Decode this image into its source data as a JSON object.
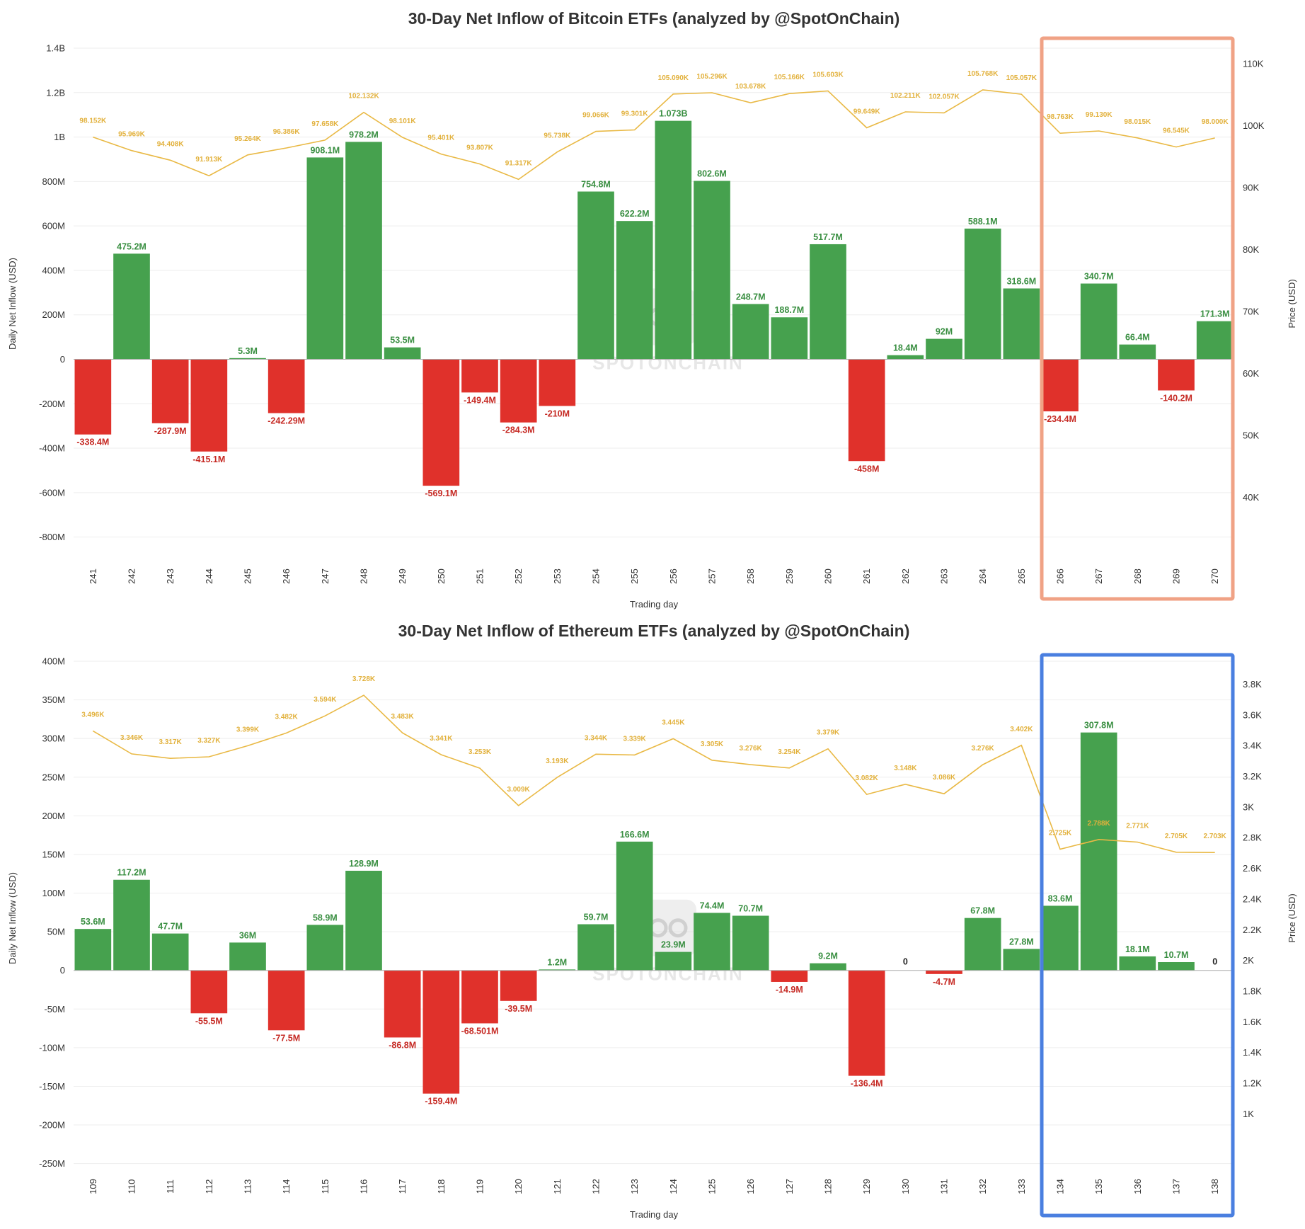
{
  "chart_data": [
    {
      "type": "bar",
      "title": "30-Day Net Inflow of Bitcoin ETFs (analyzed by @SpotOnChain)",
      "xlabel": "Trading day",
      "ylabel": "Daily Net Inflow (USD)",
      "y2label": "Price (USD)",
      "ylim": [
        -900000000,
        1400000000
      ],
      "y2lim": [
        30000,
        112500
      ],
      "yticks": [
        {
          "v": 1400000000,
          "label": "1.4B"
        },
        {
          "v": 1200000000,
          "label": "1.2B"
        },
        {
          "v": 1000000000,
          "label": "1B"
        },
        {
          "v": 800000000,
          "label": "800M"
        },
        {
          "v": 600000000,
          "label": "600M"
        },
        {
          "v": 400000000,
          "label": "400M"
        },
        {
          "v": 200000000,
          "label": "200M"
        },
        {
          "v": 0,
          "label": "0"
        },
        {
          "v": -200000000,
          "label": "-200M"
        },
        {
          "v": -400000000,
          "label": "-400M"
        },
        {
          "v": -600000000,
          "label": "-600M"
        },
        {
          "v": -800000000,
          "label": "-800M"
        }
      ],
      "y2ticks": [
        {
          "v": 110000,
          "label": "110K"
        },
        {
          "v": 100000,
          "label": "100K"
        },
        {
          "v": 90000,
          "label": "90K"
        },
        {
          "v": 80000,
          "label": "80K"
        },
        {
          "v": 70000,
          "label": "70K"
        },
        {
          "v": 60000,
          "label": "60K"
        },
        {
          "v": 50000,
          "label": "50K"
        },
        {
          "v": 40000,
          "label": "40K"
        }
      ],
      "categories": [
        "241",
        "242",
        "243",
        "244",
        "245",
        "246",
        "247",
        "248",
        "249",
        "250",
        "251",
        "252",
        "253",
        "254",
        "255",
        "256",
        "257",
        "258",
        "259",
        "260",
        "261",
        "262",
        "263",
        "264",
        "265",
        "266",
        "267",
        "268",
        "269",
        "270"
      ],
      "values": [
        -338400000,
        475200000,
        -287900000,
        -415100000,
        5300000,
        -242290000,
        908100000,
        978200000,
        53500000,
        -569100000,
        -149400000,
        -284300000,
        -210000000,
        754800000,
        622200000,
        1073000000,
        802600000,
        248700000,
        188700000,
        517700000,
        -458000000,
        18400000,
        92000000,
        588100000,
        318600000,
        -234400000,
        340700000,
        66400000,
        -140200000,
        171300000
      ],
      "value_labels": [
        "-338.4M",
        "475.2M",
        "-287.9M",
        "-415.1M",
        "5.3M",
        "-242.29M",
        "908.1M",
        "978.2M",
        "53.5M",
        "-569.1M",
        "-149.4M",
        "-284.3M",
        "-210M",
        "754.8M",
        "622.2M",
        "1.073B",
        "802.6M",
        "248.7M",
        "188.7M",
        "517.7M",
        "-458M",
        "18.4M",
        "92M",
        "588.1M",
        "318.6M",
        "-234.4M",
        "340.7M",
        "66.4M",
        "-140.2M",
        "171.3M"
      ],
      "price": [
        98152,
        95969,
        94408,
        91913,
        95264,
        96386,
        97658,
        102132,
        98101,
        95401,
        93807,
        91317,
        95738,
        99066,
        99301,
        105090,
        105296,
        103678,
        105166,
        105603,
        99649,
        102211,
        102057,
        105768,
        105057,
        98763,
        99130,
        98015,
        96545,
        98000
      ],
      "price_labels": [
        "98.152K",
        "95.969K",
        "94.408K",
        "91.913K",
        "95.264K",
        "96.386K",
        "97.658K",
        "102.132K",
        "98.101K",
        "95.401K",
        "93.807K",
        "91.317K",
        "95.738K",
        "99.066K",
        "99.301K",
        "105.090K",
        "105.296K",
        "103.678K",
        "105.166K",
        "105.603K",
        "99.649K",
        "102.211K",
        "102.057K",
        "105.768K",
        "105.057K",
        "98.763K",
        "99.130K",
        "98.015K",
        "96.545K",
        "98.000K"
      ],
      "colors": {
        "positive": "#46a14e",
        "negative": "#e0312b",
        "price": "#e9b945",
        "highlight": "#f0a285"
      },
      "highlight_from_index": 25,
      "watermark": "SPOTONCHAIN"
    },
    {
      "type": "bar",
      "title": "30-Day Net Inflow of Ethereum ETFs (analyzed by @SpotOnChain)",
      "xlabel": "Trading day",
      "ylabel": "Daily Net Inflow (USD)",
      "y2label": "Price (USD)",
      "ylim": [
        -265000000,
        400000000
      ],
      "y2lim": [
        600,
        3950
      ],
      "yticks": [
        {
          "v": 400000000,
          "label": "400M"
        },
        {
          "v": 350000000,
          "label": "350M"
        },
        {
          "v": 300000000,
          "label": "300M"
        },
        {
          "v": 250000000,
          "label": "250M"
        },
        {
          "v": 200000000,
          "label": "200M"
        },
        {
          "v": 150000000,
          "label": "150M"
        },
        {
          "v": 100000000,
          "label": "100M"
        },
        {
          "v": 50000000,
          "label": "50M"
        },
        {
          "v": 0,
          "label": "0"
        },
        {
          "v": -50000000,
          "label": "-50M"
        },
        {
          "v": -100000000,
          "label": "-100M"
        },
        {
          "v": -150000000,
          "label": "-150M"
        },
        {
          "v": -200000000,
          "label": "-200M"
        },
        {
          "v": -250000000,
          "label": "-250M"
        }
      ],
      "y2ticks": [
        {
          "v": 3800,
          "label": "3.8K"
        },
        {
          "v": 3600,
          "label": "3.6K"
        },
        {
          "v": 3400,
          "label": "3.4K"
        },
        {
          "v": 3200,
          "label": "3.2K"
        },
        {
          "v": 3000,
          "label": "3K"
        },
        {
          "v": 2800,
          "label": "2.8K"
        },
        {
          "v": 2600,
          "label": "2.6K"
        },
        {
          "v": 2400,
          "label": "2.4K"
        },
        {
          "v": 2200,
          "label": "2.2K"
        },
        {
          "v": 2000,
          "label": "2K"
        },
        {
          "v": 1800,
          "label": "1.8K"
        },
        {
          "v": 1600,
          "label": "1.6K"
        },
        {
          "v": 1400,
          "label": "1.4K"
        },
        {
          "v": 1200,
          "label": "1.2K"
        },
        {
          "v": 1000,
          "label": "1K"
        }
      ],
      "categories": [
        "109",
        "110",
        "111",
        "112",
        "113",
        "114",
        "115",
        "116",
        "117",
        "118",
        "119",
        "120",
        "121",
        "122",
        "123",
        "124",
        "125",
        "126",
        "127",
        "128",
        "129",
        "130",
        "131",
        "132",
        "133",
        "134",
        "135",
        "136",
        "137",
        "138"
      ],
      "values": [
        53600000,
        117200000,
        47700000,
        -55500000,
        36000000,
        -77500000,
        58900000,
        128900000,
        -86800000,
        -159400000,
        -68501000,
        -39500000,
        1200000,
        59700000,
        166600000,
        23900000,
        74400000,
        70700000,
        -14900000,
        9200000,
        -136400000,
        0,
        -4700000,
        67800000,
        27800000,
        83600000,
        307800000,
        18100000,
        10700000,
        0
      ],
      "value_labels": [
        "53.6M",
        "117.2M",
        "47.7M",
        "-55.5M",
        "36M",
        "-77.5M",
        "58.9M",
        "128.9M",
        "-86.8M",
        "-159.4M",
        "-68.501M",
        "-39.5M",
        "1.2M",
        "59.7M",
        "166.6M",
        "23.9M",
        "74.4M",
        "70.7M",
        "-14.9M",
        "9.2M",
        "-136.4M",
        "0",
        "-4.7M",
        "67.8M",
        "27.8M",
        "83.6M",
        "307.8M",
        "18.1M",
        "10.7M",
        "0"
      ],
      "price": [
        3496,
        3346,
        3317,
        3327,
        3399,
        3482,
        3594,
        3728,
        3483,
        3341,
        3253,
        3009,
        3193,
        3344,
        3339,
        3445,
        3305,
        3276,
        3254,
        3379,
        3082,
        3148,
        3086,
        3276,
        3402,
        2725,
        2788,
        2771,
        2705,
        2703
      ],
      "price_labels": [
        "3.496K",
        "3.346K",
        "3.317K",
        "3.327K",
        "3.399K",
        "3.482K",
        "3.594K",
        "3.728K",
        "3.483K",
        "3.341K",
        "3.253K",
        "3.009K",
        "3.193K",
        "3.344K",
        "3.339K",
        "3.445K",
        "3.305K",
        "3.276K",
        "3.254K",
        "3.379K",
        "3.082K",
        "3.148K",
        "3.086K",
        "3.276K",
        "3.402K",
        "2.725K",
        "2.788K",
        "2.771K",
        "2.705K",
        "2.703K"
      ],
      "colors": {
        "positive": "#46a14e",
        "negative": "#e0312b",
        "price": "#e9b945",
        "highlight": "#4a7fe0"
      },
      "highlight_from_index": 25,
      "watermark": "SPOTONCHAIN"
    }
  ]
}
